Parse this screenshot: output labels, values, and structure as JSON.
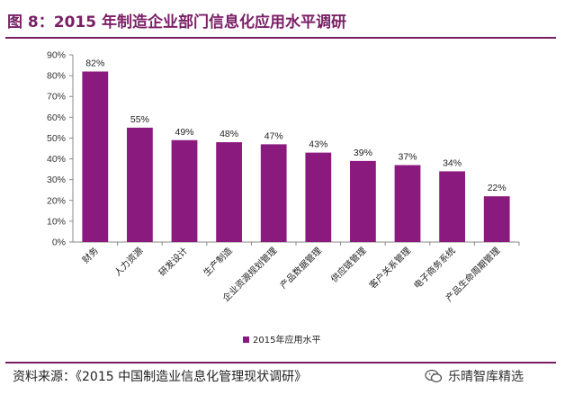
{
  "figure": {
    "title": "图 8：2015 年制造企业部门信息化应用水平调研",
    "source": "资料来源：《2015 中国制造业信息化管理现状调研》",
    "brand": "乐晴智库精选",
    "accent_color": "#7a1f66",
    "brand_icon": "wechat-icon"
  },
  "chart_data": {
    "type": "bar",
    "categories": [
      "财务",
      "人力资源",
      "研发设计",
      "生产制造",
      "企业资源规划管理",
      "产品数据管理",
      "供应链管理",
      "客户关系管理",
      "电子商务系统",
      "产品生命周期管理"
    ],
    "series": [
      {
        "name": "2015年应用水平",
        "values": [
          82,
          55,
          49,
          48,
          47,
          43,
          39,
          37,
          34,
          22
        ],
        "color": "#8b1a7f"
      }
    ],
    "data_labels": [
      "82%",
      "55%",
      "49%",
      "48%",
      "47%",
      "43%",
      "39%",
      "37%",
      "34%",
      "22%"
    ],
    "y_ticks": [
      "0%",
      "10%",
      "20%",
      "30%",
      "40%",
      "50%",
      "60%",
      "70%",
      "80%",
      "90%"
    ],
    "ylim": [
      0,
      90
    ],
    "grid": false,
    "legend_position": "bottom-left"
  }
}
